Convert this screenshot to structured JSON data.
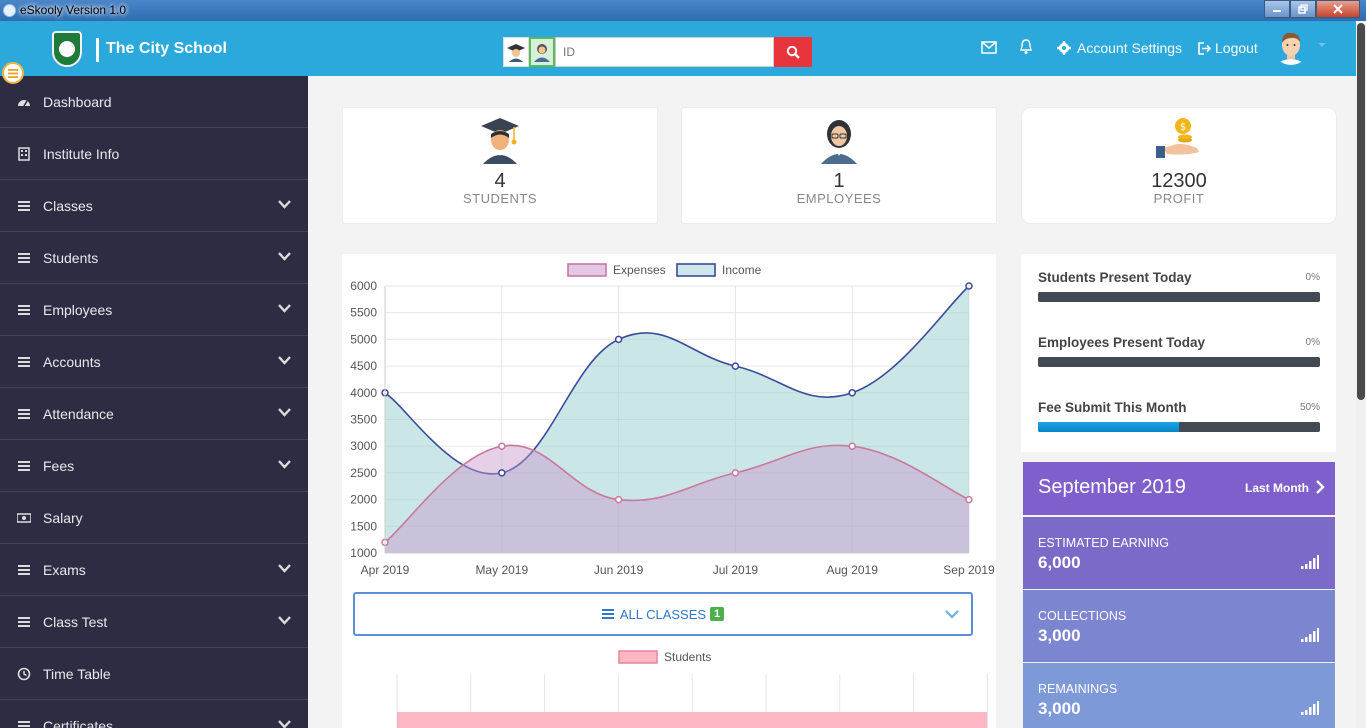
{
  "window": {
    "title": "eSkooly Version 1.0"
  },
  "header": {
    "brand": "The City School",
    "search_placeholder": "ID",
    "account_settings": "Account Settings",
    "logout": "Logout"
  },
  "sidebar": {
    "items": [
      {
        "label": "Dashboard",
        "icon": "dashboard-icon",
        "has_submenu": false
      },
      {
        "label": "Institute Info",
        "icon": "building-icon",
        "has_submenu": false
      },
      {
        "label": "Classes",
        "icon": "menu-icon",
        "has_submenu": true
      },
      {
        "label": "Students",
        "icon": "menu-icon",
        "has_submenu": true
      },
      {
        "label": "Employees",
        "icon": "menu-icon",
        "has_submenu": true
      },
      {
        "label": "Accounts",
        "icon": "menu-icon",
        "has_submenu": true
      },
      {
        "label": "Attendance",
        "icon": "menu-icon",
        "has_submenu": true
      },
      {
        "label": "Fees",
        "icon": "menu-icon",
        "has_submenu": true
      },
      {
        "label": "Salary",
        "icon": "money-icon",
        "has_submenu": false
      },
      {
        "label": "Exams",
        "icon": "menu-icon",
        "has_submenu": true
      },
      {
        "label": "Class Test",
        "icon": "menu-icon",
        "has_submenu": true
      },
      {
        "label": "Time Table",
        "icon": "clock-icon",
        "has_submenu": false
      },
      {
        "label": "Certificates",
        "icon": "menu-icon",
        "has_submenu": true
      }
    ]
  },
  "stats": {
    "students": {
      "value": "4",
      "label": "STUDENTS"
    },
    "employees": {
      "value": "1",
      "label": "EMPLOYEES"
    },
    "profit": {
      "value": "12300",
      "label": "PROFIT"
    }
  },
  "chart_data": {
    "type": "area",
    "x": [
      "Apr 2019",
      "May 2019",
      "Jun 2019",
      "Jul 2019",
      "Aug 2019",
      "Sep 2019"
    ],
    "series": [
      {
        "name": "Expenses",
        "values": [
          1200,
          3000,
          2000,
          2500,
          3000,
          2000
        ],
        "color": "#c9799e"
      },
      {
        "name": "Income",
        "values": [
          4000,
          2500,
          5000,
          4500,
          4000,
          6000
        ],
        "color": "#3b4a9a"
      }
    ],
    "yticks": [
      "6000",
      "5500",
      "5000",
      "4500",
      "4000",
      "3500",
      "3000",
      "2500",
      "2000",
      "1500",
      "1000"
    ],
    "ylim": [
      1000,
      6000
    ],
    "grid": true,
    "legend": "top-center"
  },
  "classes_filter": {
    "label": "ALL CLASSES",
    "count": "1"
  },
  "students_chart": {
    "legend": "Students"
  },
  "attendance": [
    {
      "label": "Students Present Today",
      "pct": "0%",
      "value": 0
    },
    {
      "label": "Employees Present Today",
      "pct": "0%",
      "value": 0
    },
    {
      "label": "Fee Submit This Month",
      "pct": "50%",
      "value": 0.5
    }
  ],
  "month_summary": {
    "title": "September 2019",
    "last_month": "Last Month",
    "rows": [
      {
        "label": "ESTIMATED EARNING",
        "value": "6,000",
        "color": "#7b6ac8"
      },
      {
        "label": "COLLECTIONS",
        "value": "3,000",
        "color": "#7c85d0"
      },
      {
        "label": "REMAININGS",
        "value": "3,000",
        "color": "#7d99d8"
      }
    ]
  }
}
